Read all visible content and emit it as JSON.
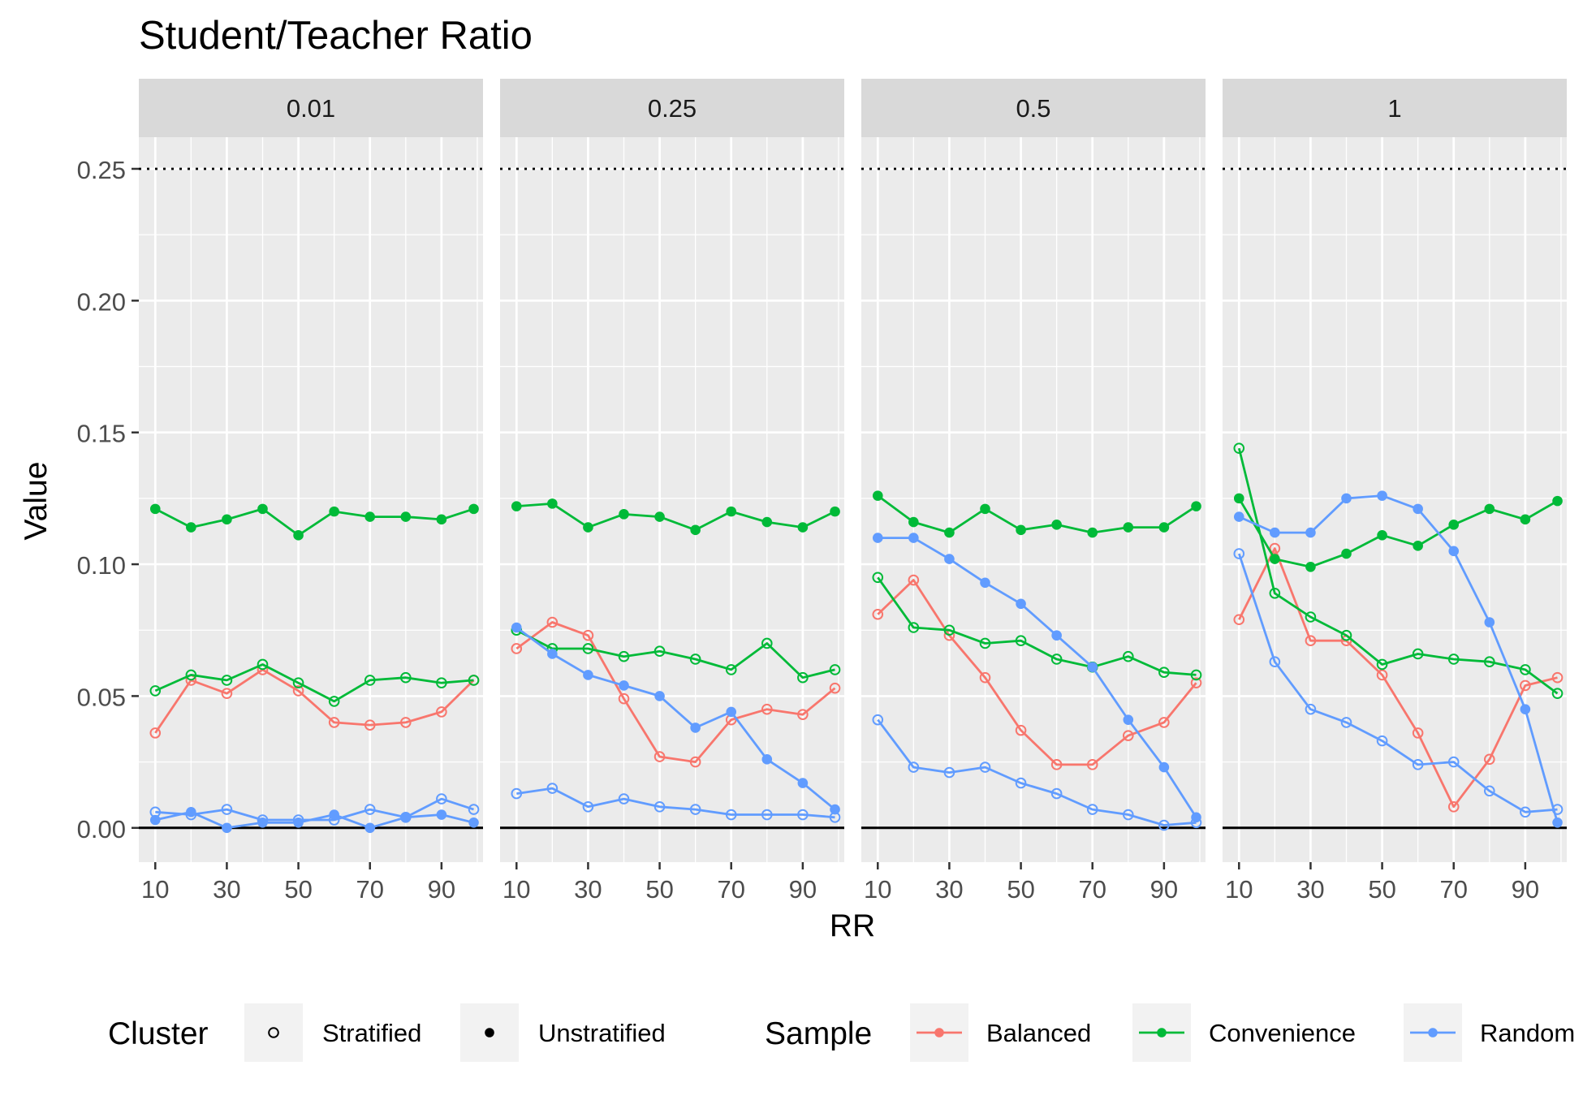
{
  "chart_data": {
    "type": "line",
    "title": "Student/Teacher Ratio",
    "xlabel": "RR",
    "ylabel": "Value",
    "ylim": [
      -0.013,
      0.262
    ],
    "xlim": [
      5.4,
      101.6
    ],
    "y_ticks": [
      0,
      0.05,
      0.1,
      0.15,
      0.2,
      0.25
    ],
    "y_tick_labels": [
      "0.00",
      "0.05",
      "0.10",
      "0.15",
      "0.20",
      "0.25"
    ],
    "x_ticks": [
      10,
      30,
      50,
      70,
      90
    ],
    "x_tick_labels": [
      "10",
      "30",
      "50",
      "70",
      "90"
    ],
    "reference_lines": [
      {
        "y": 0.25,
        "style": "dotted"
      },
      {
        "y": 0,
        "style": "solid"
      }
    ],
    "grid": true,
    "legend_position": "bottom",
    "legends": {
      "cluster": {
        "title": "Cluster",
        "entries": [
          {
            "label": "Stratified",
            "key": "stratified"
          },
          {
            "label": "Unstratified",
            "key": "unstratified"
          }
        ]
      },
      "sample": {
        "title": "Sample",
        "entries": [
          {
            "label": "Balanced",
            "key": "balanced"
          },
          {
            "label": "Convenience",
            "key": "convenience"
          },
          {
            "label": "Random",
            "key": "random"
          }
        ]
      }
    },
    "colors": {
      "balanced": "#F8766D",
      "convenience": "#00BA38",
      "random": "#619CFF"
    },
    "panels": [
      {
        "label": "0.01",
        "series": [
          {
            "sample": "balanced",
            "cluster": "stratified",
            "x": [
              10,
              20,
              30,
              40,
              50,
              60,
              70,
              80,
              90,
              99
            ],
            "y": [
              0.036,
              0.056,
              0.051,
              0.06,
              0.052,
              0.04,
              0.039,
              0.04,
              0.044,
              0.056
            ]
          },
          {
            "sample": "convenience",
            "cluster": "stratified",
            "x": [
              10,
              20,
              30,
              40,
              50,
              60,
              70,
              80,
              90,
              99
            ],
            "y": [
              0.052,
              0.058,
              0.056,
              0.062,
              0.055,
              0.048,
              0.056,
              0.057,
              0.055,
              0.056
            ]
          },
          {
            "sample": "convenience",
            "cluster": "unstratified",
            "x": [
              10,
              20,
              30,
              40,
              50,
              60,
              70,
              80,
              90,
              99
            ],
            "y": [
              0.121,
              0.114,
              0.117,
              0.121,
              0.111,
              0.12,
              0.118,
              0.118,
              0.117,
              0.121
            ]
          },
          {
            "sample": "random",
            "cluster": "stratified",
            "x": [
              10,
              20,
              30,
              40,
              50,
              60,
              70,
              80,
              90,
              99
            ],
            "y": [
              0.006,
              0.005,
              0.007,
              0.003,
              0.003,
              0.003,
              0.007,
              0.004,
              0.011,
              0.007
            ]
          },
          {
            "sample": "random",
            "cluster": "unstratified",
            "x": [
              10,
              20,
              30,
              40,
              50,
              60,
              70,
              80,
              90,
              99
            ],
            "y": [
              0.003,
              0.006,
              0.0,
              0.002,
              0.002,
              0.005,
              0.0,
              0.004,
              0.005,
              0.002
            ]
          }
        ]
      },
      {
        "label": "0.25",
        "series": [
          {
            "sample": "balanced",
            "cluster": "stratified",
            "x": [
              10,
              20,
              30,
              40,
              50,
              60,
              70,
              80,
              90,
              99
            ],
            "y": [
              0.068,
              0.078,
              0.073,
              0.049,
              0.027,
              0.025,
              0.041,
              0.045,
              0.043,
              0.053
            ]
          },
          {
            "sample": "convenience",
            "cluster": "stratified",
            "x": [
              10,
              20,
              30,
              40,
              50,
              60,
              70,
              80,
              90,
              99
            ],
            "y": [
              0.075,
              0.068,
              0.068,
              0.065,
              0.067,
              0.064,
              0.06,
              0.07,
              0.057,
              0.06
            ]
          },
          {
            "sample": "convenience",
            "cluster": "unstratified",
            "x": [
              10,
              20,
              30,
              40,
              50,
              60,
              70,
              80,
              90,
              99
            ],
            "y": [
              0.122,
              0.123,
              0.114,
              0.119,
              0.118,
              0.113,
              0.12,
              0.116,
              0.114,
              0.12
            ]
          },
          {
            "sample": "random",
            "cluster": "stratified",
            "x": [
              10,
              20,
              30,
              40,
              50,
              60,
              70,
              80,
              90,
              99
            ],
            "y": [
              0.013,
              0.015,
              0.008,
              0.011,
              0.008,
              0.007,
              0.005,
              0.005,
              0.005,
              0.004
            ]
          },
          {
            "sample": "random",
            "cluster": "unstratified",
            "x": [
              10,
              20,
              30,
              40,
              50,
              60,
              70,
              80,
              90,
              99
            ],
            "y": [
              0.076,
              0.066,
              0.058,
              0.054,
              0.05,
              0.038,
              0.044,
              0.026,
              0.017,
              0.007
            ]
          }
        ]
      },
      {
        "label": "0.5",
        "series": [
          {
            "sample": "balanced",
            "cluster": "stratified",
            "x": [
              10,
              20,
              30,
              40,
              50,
              60,
              70,
              80,
              90,
              99
            ],
            "y": [
              0.081,
              0.094,
              0.073,
              0.057,
              0.037,
              0.024,
              0.024,
              0.035,
              0.04,
              0.055
            ]
          },
          {
            "sample": "convenience",
            "cluster": "stratified",
            "x": [
              10,
              20,
              30,
              40,
              50,
              60,
              70,
              80,
              90,
              99
            ],
            "y": [
              0.095,
              0.076,
              0.075,
              0.07,
              0.071,
              0.064,
              0.061,
              0.065,
              0.059,
              0.058
            ]
          },
          {
            "sample": "convenience",
            "cluster": "unstratified",
            "x": [
              10,
              20,
              30,
              40,
              50,
              60,
              70,
              80,
              90,
              99
            ],
            "y": [
              0.126,
              0.116,
              0.112,
              0.121,
              0.113,
              0.115,
              0.112,
              0.114,
              0.114,
              0.122
            ]
          },
          {
            "sample": "random",
            "cluster": "stratified",
            "x": [
              10,
              20,
              30,
              40,
              50,
              60,
              70,
              80,
              90,
              99
            ],
            "y": [
              0.041,
              0.023,
              0.021,
              0.023,
              0.017,
              0.013,
              0.007,
              0.005,
              0.001,
              0.002
            ]
          },
          {
            "sample": "random",
            "cluster": "unstratified",
            "x": [
              10,
              20,
              30,
              40,
              50,
              60,
              70,
              80,
              90,
              99
            ],
            "y": [
              0.11,
              0.11,
              0.102,
              0.093,
              0.085,
              0.073,
              0.061,
              0.041,
              0.023,
              0.004
            ]
          }
        ]
      },
      {
        "label": "1",
        "series": [
          {
            "sample": "balanced",
            "cluster": "stratified",
            "x": [
              10,
              20,
              30,
              40,
              50,
              60,
              70,
              80,
              90,
              99
            ],
            "y": [
              0.079,
              0.106,
              0.071,
              0.071,
              0.058,
              0.036,
              0.008,
              0.026,
              0.054,
              0.057
            ]
          },
          {
            "sample": "convenience",
            "cluster": "stratified",
            "x": [
              10,
              20,
              30,
              40,
              50,
              60,
              70,
              80,
              90,
              99
            ],
            "y": [
              0.144,
              0.089,
              0.08,
              0.073,
              0.062,
              0.066,
              0.064,
              0.063,
              0.06,
              0.051
            ]
          },
          {
            "sample": "convenience",
            "cluster": "unstratified",
            "x": [
              10,
              20,
              30,
              40,
              50,
              60,
              70,
              80,
              90,
              99
            ],
            "y": [
              0.125,
              0.102,
              0.099,
              0.104,
              0.111,
              0.107,
              0.115,
              0.121,
              0.117,
              0.124
            ]
          },
          {
            "sample": "random",
            "cluster": "stratified",
            "x": [
              10,
              20,
              30,
              40,
              50,
              60,
              70,
              80,
              90,
              99
            ],
            "y": [
              0.104,
              0.063,
              0.045,
              0.04,
              0.033,
              0.024,
              0.025,
              0.014,
              0.006,
              0.007
            ]
          },
          {
            "sample": "random",
            "cluster": "unstratified",
            "x": [
              10,
              20,
              30,
              40,
              50,
              60,
              70,
              80,
              90,
              99
            ],
            "y": [
              0.118,
              0.112,
              0.112,
              0.125,
              0.126,
              0.121,
              0.105,
              0.078,
              0.045,
              0.002
            ]
          }
        ]
      }
    ]
  }
}
